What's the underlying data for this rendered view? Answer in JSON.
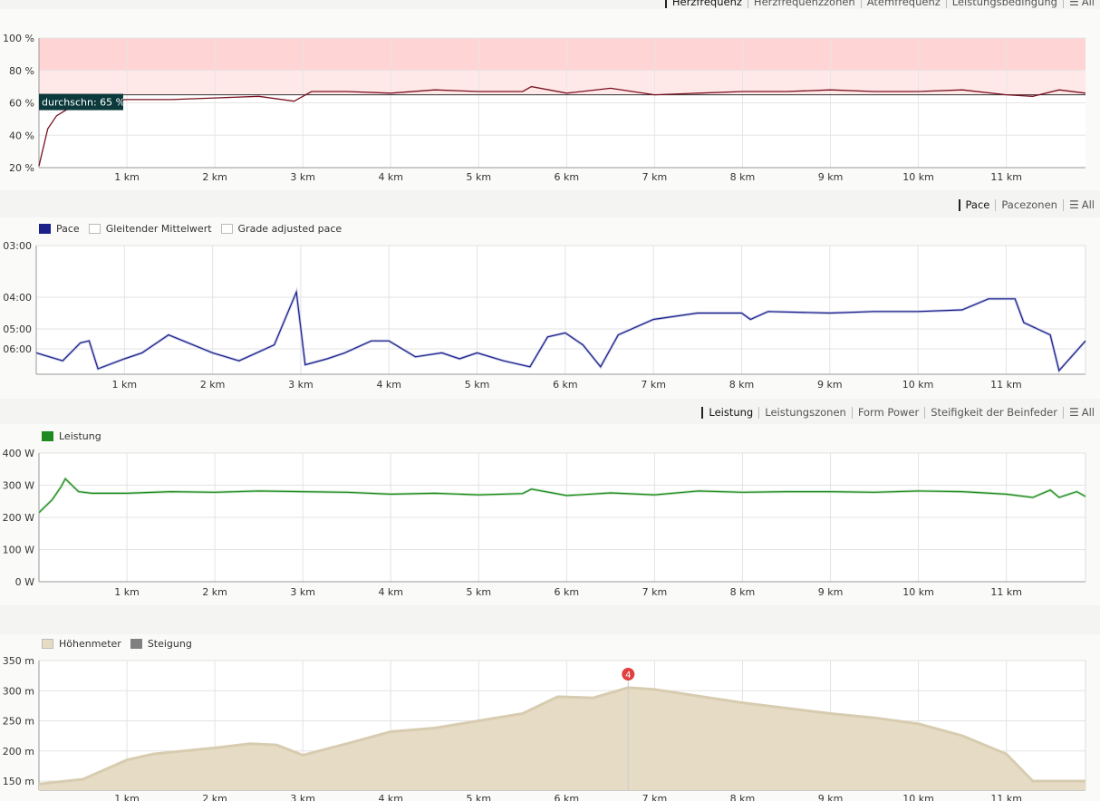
{
  "hr_panel": {
    "tabs": [
      {
        "label": "Herzfrequenz",
        "active": true
      },
      {
        "label": "Herzfrequenzzonen",
        "active": false
      },
      {
        "label": "Atemfrequenz",
        "active": false
      },
      {
        "label": "Leistungsbedingung",
        "active": false
      },
      {
        "label": "All",
        "active": false
      }
    ],
    "avg_label": "durchschn: 65 %"
  },
  "pace_panel": {
    "tabs": [
      {
        "label": "Pace",
        "active": true
      },
      {
        "label": "Pacezonen",
        "active": false
      },
      {
        "label": "All",
        "active": false
      }
    ],
    "legend": [
      {
        "label": "Pace",
        "color": "#1a1f8a",
        "enabled": true
      },
      {
        "label": "Gleitender Mittelwert",
        "color": "#ffffff",
        "enabled": false
      },
      {
        "label": "Grade adjusted pace",
        "color": "#ffffff",
        "enabled": false
      }
    ]
  },
  "power_panel": {
    "tabs": [
      {
        "label": "Leistung",
        "active": true
      },
      {
        "label": "Leistungszonen",
        "active": false
      },
      {
        "label": "Form Power",
        "active": false
      },
      {
        "label": "Steifigkeit der Beinfeder",
        "active": false
      },
      {
        "label": "All",
        "active": false
      }
    ],
    "legend": [
      {
        "label": "Leistung",
        "color": "#1f8a1f",
        "enabled": true
      }
    ]
  },
  "elevation_panel": {
    "legend": [
      {
        "label": "Höhenmeter",
        "color": "#e6dcc6",
        "enabled": true
      },
      {
        "label": "Steigung",
        "color": "#808080",
        "enabled": true
      }
    ],
    "marker_label": "4"
  },
  "chart_data": [
    {
      "type": "line",
      "name": "hr",
      "x_unit": "km",
      "xlim": [
        0,
        11.9
      ],
      "ylim": [
        20,
        100
      ],
      "yticks": [
        "20 %",
        "40 %",
        "60 %",
        "80 %",
        "100 %"
      ],
      "xticks": [
        "1 km",
        "2 km",
        "3 km",
        "4 km",
        "5 km",
        "6 km",
        "7 km",
        "8 km",
        "9 km",
        "10 km",
        "11 km"
      ],
      "average": 65,
      "bands": [
        {
          "from": 80,
          "to": 100,
          "color": "#ffd4d4"
        },
        {
          "from": 65,
          "to": 80,
          "color": "#ffe8e8"
        }
      ],
      "series": [
        {
          "color": "#7a1020",
          "x": [
            0,
            0.1,
            0.2,
            0.35,
            0.5,
            0.7,
            1,
            1.5,
            2,
            2.5,
            2.9,
            3.1,
            3.5,
            4,
            4.5,
            5,
            5.5,
            5.6,
            6,
            6.5,
            7,
            7.5,
            8,
            8.5,
            9,
            9.5,
            10,
            10.5,
            11,
            11.3,
            11.6,
            11.9
          ],
          "values": [
            21,
            44,
            52,
            57,
            59,
            61,
            62,
            62,
            63,
            64,
            61,
            67,
            67,
            66,
            68,
            67,
            67,
            70,
            66,
            69,
            65,
            66,
            67,
            67,
            68,
            67,
            67,
            68,
            65,
            64,
            68,
            66
          ]
        }
      ]
    },
    {
      "type": "line",
      "name": "pace",
      "x_unit": "km",
      "xlim": [
        0,
        11.9
      ],
      "y_unit": "min/km",
      "yticks": [
        "03:00",
        "04:00",
        "05:00",
        "06:00"
      ],
      "series": [
        {
          "name": "Pace",
          "color": "#1a1f8a",
          "x": [
            0,
            0.3,
            0.5,
            0.6,
            0.7,
            1,
            1.2,
            1.5,
            2,
            2.3,
            2.5,
            2.7,
            2.95,
            3.05,
            3.3,
            3.5,
            3.8,
            4,
            4.3,
            4.6,
            4.8,
            5,
            5.3,
            5.6,
            5.8,
            6,
            6.2,
            6.4,
            6.6,
            7,
            7.5,
            8,
            8.1,
            8.3,
            9,
            9.5,
            10,
            10.5,
            10.8,
            11.1,
            11.2,
            11.5,
            11.6,
            11.9
          ],
          "values": [
            6.2,
            6.6,
            5.7,
            5.6,
            7.0,
            6.5,
            6.2,
            5.3,
            6.2,
            6.6,
            6.2,
            5.8,
            3.9,
            6.8,
            6.5,
            6.2,
            5.6,
            5.6,
            6.4,
            6.2,
            6.5,
            6.2,
            6.6,
            6.9,
            5.4,
            5.2,
            5.8,
            6.9,
            5.3,
            4.7,
            4.5,
            4.5,
            4.7,
            4.45,
            4.5,
            4.45,
            4.45,
            4.4,
            4.05,
            4.05,
            4.8,
            5.3,
            7.2,
            5.6
          ]
        }
      ]
    },
    {
      "type": "line",
      "name": "power",
      "x_unit": "km",
      "xlim": [
        0,
        11.9
      ],
      "ylim": [
        0,
        400
      ],
      "yticks": [
        "0 W",
        "100 W",
        "200 W",
        "300 W",
        "400 W"
      ],
      "series": [
        {
          "name": "Leistung",
          "color": "#1f8a1f",
          "x": [
            0,
            0.15,
            0.25,
            0.3,
            0.45,
            0.6,
            1,
            1.5,
            2,
            2.5,
            3,
            3.5,
            4,
            4.5,
            5,
            5.5,
            5.6,
            6,
            6.5,
            7,
            7.5,
            8,
            8.5,
            9,
            9.5,
            10,
            10.5,
            11,
            11.3,
            11.5,
            11.6,
            11.8,
            11.9
          ],
          "values": [
            215,
            255,
            295,
            320,
            280,
            275,
            275,
            280,
            278,
            282,
            280,
            278,
            272,
            275,
            270,
            274,
            288,
            268,
            276,
            270,
            282,
            278,
            280,
            280,
            278,
            282,
            280,
            272,
            262,
            285,
            262,
            280,
            265
          ]
        }
      ]
    },
    {
      "type": "area",
      "name": "elevation",
      "x_unit": "km",
      "xlim": [
        0,
        11.9
      ],
      "ylim": [
        135,
        350
      ],
      "yticks": [
        "150 m",
        "200 m",
        "250 m",
        "300 m",
        "350 m"
      ],
      "series": [
        {
          "name": "Höhenmeter",
          "color": "#e6dcc6",
          "x": [
            0,
            0.5,
            1,
            1.3,
            2,
            2.4,
            2.7,
            3,
            3.5,
            4,
            4.5,
            5,
            5.5,
            5.9,
            6.3,
            6.7,
            7,
            8,
            9,
            9.5,
            10,
            10.5,
            11,
            11.3,
            11.9
          ],
          "values": [
            145,
            153,
            185,
            195,
            205,
            212,
            210,
            193,
            212,
            232,
            238,
            250,
            262,
            290,
            288,
            305,
            302,
            280,
            262,
            255,
            245,
            225,
            195,
            150,
            150
          ]
        }
      ],
      "marker": {
        "x": 6.7,
        "label": "4"
      }
    }
  ]
}
